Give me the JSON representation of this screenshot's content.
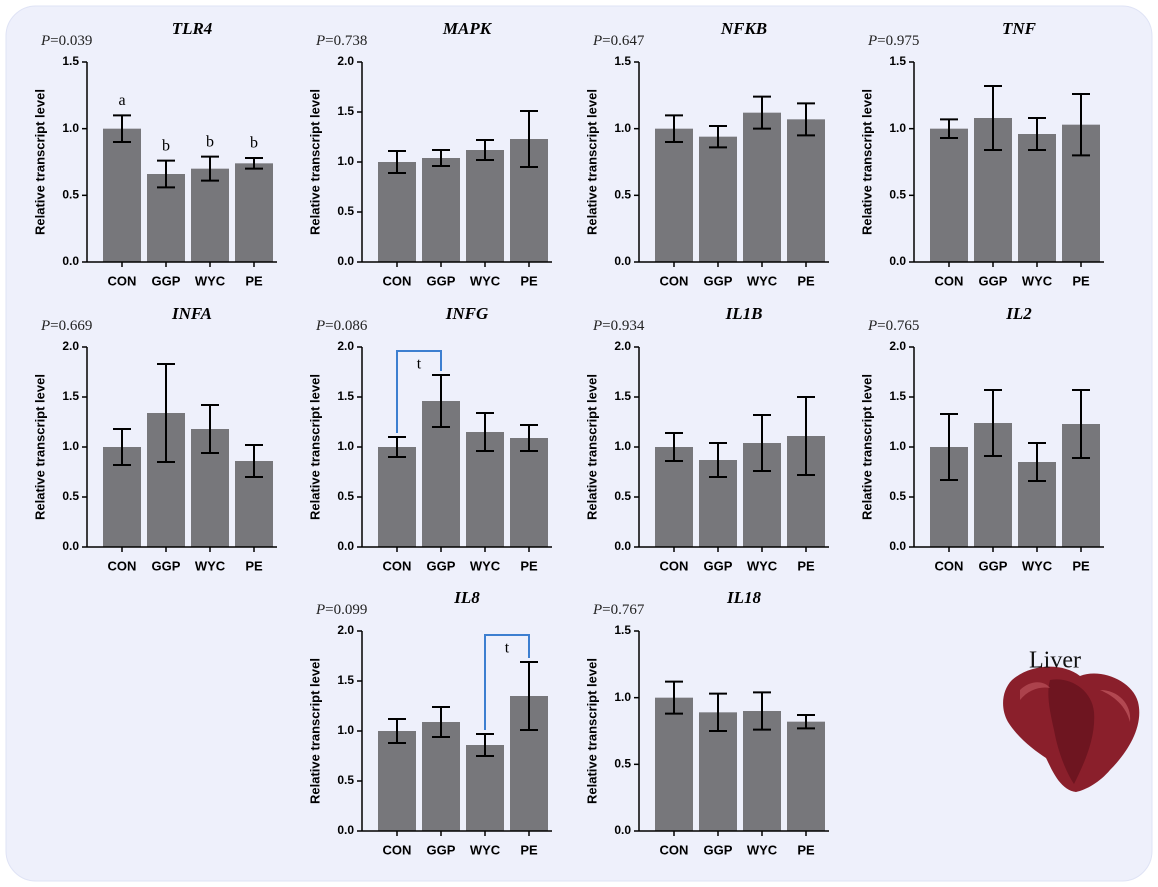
{
  "chart_data": [
    {
      "type": "bar",
      "title": "TLR4",
      "p_symbol": "P",
      "p_value": "=0.039",
      "ylabel": "Relative transcript level",
      "categories": [
        "CON",
        "GGP",
        "WYC",
        "PE"
      ],
      "values": [
        1.0,
        0.66,
        0.7,
        0.74
      ],
      "errors": [
        0.1,
        0.1,
        0.09,
        0.04
      ],
      "letters": [
        "a",
        "b",
        "b",
        "b"
      ],
      "color": "#77777b",
      "ylim": [
        0,
        1.5
      ],
      "yticks": [
        {
          "value": 0,
          "label": "0.0"
        },
        {
          "value": 0.5,
          "label": "0.5"
        },
        {
          "value": 1,
          "label": "1.0"
        },
        {
          "value": 1.5,
          "label": "1.5"
        }
      ]
    },
    {
      "type": "bar",
      "title": "MAPK",
      "p_symbol": "P",
      "p_value": "=0.738",
      "ylabel": "Relative transcript level",
      "categories": [
        "CON",
        "GGP",
        "WYC",
        "PE"
      ],
      "values": [
        1.0,
        1.04,
        1.12,
        1.23
      ],
      "errors": [
        0.11,
        0.08,
        0.1,
        0.28
      ],
      "color": "#77777b",
      "ylim": [
        0,
        2
      ],
      "yticks": [
        {
          "value": 0,
          "label": "0.0"
        },
        {
          "value": 0.5,
          "label": "0.5"
        },
        {
          "value": 1,
          "label": "1.0"
        },
        {
          "value": 1.5,
          "label": "1.5"
        },
        {
          "value": 2,
          "label": "2.0"
        }
      ]
    },
    {
      "type": "bar",
      "title": "NFKB",
      "p_symbol": "P",
      "p_value": "=0.647",
      "ylabel": "Relative transcript level",
      "categories": [
        "CON",
        "GGP",
        "WYC",
        "PE"
      ],
      "values": [
        1.0,
        0.94,
        1.12,
        1.07
      ],
      "errors": [
        0.1,
        0.08,
        0.12,
        0.12
      ],
      "color": "#77777b",
      "ylim": [
        0,
        1.5
      ],
      "yticks": [
        {
          "value": 0,
          "label": "0.0"
        },
        {
          "value": 0.5,
          "label": "0.5"
        },
        {
          "value": 1,
          "label": "1.0"
        },
        {
          "value": 1.5,
          "label": "1.5"
        }
      ]
    },
    {
      "type": "bar",
      "title": "TNF",
      "p_symbol": "P",
      "p_value": "=0.975",
      "ylabel": "Relative transcript level",
      "categories": [
        "CON",
        "GGP",
        "WYC",
        "PE"
      ],
      "values": [
        1.0,
        1.08,
        0.96,
        1.03
      ],
      "errors": [
        0.07,
        0.24,
        0.12,
        0.23
      ],
      "color": "#77777b",
      "ylim": [
        0,
        1.5
      ],
      "yticks": [
        {
          "value": 0,
          "label": "0.0"
        },
        {
          "value": 0.5,
          "label": "0.5"
        },
        {
          "value": 1,
          "label": "1.0"
        },
        {
          "value": 1.5,
          "label": "1.5"
        }
      ]
    },
    {
      "type": "bar",
      "title": "INFA",
      "p_symbol": "P",
      "p_value": "=0.669",
      "ylabel": "Relative transcript level",
      "categories": [
        "CON",
        "GGP",
        "WYC",
        "PE"
      ],
      "values": [
        1.0,
        1.34,
        1.18,
        0.86
      ],
      "errors": [
        0.18,
        0.49,
        0.24,
        0.16
      ],
      "color": "#77777b",
      "ylim": [
        0,
        2
      ],
      "yticks": [
        {
          "value": 0,
          "label": "0.0"
        },
        {
          "value": 0.5,
          "label": "0.5"
        },
        {
          "value": 1,
          "label": "1.0"
        },
        {
          "value": 1.5,
          "label": "1.5"
        },
        {
          "value": 2,
          "label": "2.0"
        }
      ]
    },
    {
      "type": "bar",
      "title": "INFG",
      "p_symbol": "P",
      "p_value": "=0.086",
      "ylabel": "Relative transcript level",
      "categories": [
        "CON",
        "GGP",
        "WYC",
        "PE"
      ],
      "values": [
        1.0,
        1.46,
        1.15,
        1.09
      ],
      "errors": [
        0.1,
        0.26,
        0.19,
        0.13
      ],
      "comparisons": [
        {
          "categories": [
            "CON",
            "GGP"
          ],
          "label": "t",
          "color": "#3d7fd0"
        }
      ],
      "color": "#77777b",
      "ylim": [
        0,
        2
      ],
      "yticks": [
        {
          "value": 0,
          "label": "0.0"
        },
        {
          "value": 0.5,
          "label": "0.5"
        },
        {
          "value": 1,
          "label": "1.0"
        },
        {
          "value": 1.5,
          "label": "1.5"
        },
        {
          "value": 2,
          "label": "2.0"
        }
      ]
    },
    {
      "type": "bar",
      "title": "IL1B",
      "p_symbol": "P",
      "p_value": "=0.934",
      "ylabel": "Relative transcript level",
      "categories": [
        "CON",
        "GGP",
        "WYC",
        "PE"
      ],
      "values": [
        1.0,
        0.87,
        1.04,
        1.11
      ],
      "errors": [
        0.14,
        0.17,
        0.28,
        0.39
      ],
      "color": "#77777b",
      "ylim": [
        0,
        2
      ],
      "yticks": [
        {
          "value": 0,
          "label": "0.0"
        },
        {
          "value": 0.5,
          "label": "0.5"
        },
        {
          "value": 1,
          "label": "1.0"
        },
        {
          "value": 1.5,
          "label": "1.5"
        },
        {
          "value": 2,
          "label": "2.0"
        }
      ]
    },
    {
      "type": "bar",
      "title": "IL2",
      "p_symbol": "P",
      "p_value": "=0.765",
      "ylabel": "Relative transcript level",
      "categories": [
        "CON",
        "GGP",
        "WYC",
        "PE"
      ],
      "values": [
        1.0,
        1.24,
        0.85,
        1.23
      ],
      "errors": [
        0.33,
        0.33,
        0.19,
        0.34
      ],
      "color": "#77777b",
      "ylim": [
        0,
        2
      ],
      "yticks": [
        {
          "value": 0,
          "label": "0.0"
        },
        {
          "value": 0.5,
          "label": "0.5"
        },
        {
          "value": 1,
          "label": "1.0"
        },
        {
          "value": 1.5,
          "label": "1.5"
        },
        {
          "value": 2,
          "label": "2.0"
        }
      ]
    },
    {
      "type": "bar",
      "title": "IL8",
      "p_symbol": "P",
      "p_value": "=0.099",
      "ylabel": "Relative transcript level",
      "categories": [
        "CON",
        "GGP",
        "WYC",
        "PE"
      ],
      "values": [
        1.0,
        1.09,
        0.86,
        1.35
      ],
      "errors": [
        0.12,
        0.15,
        0.11,
        0.34
      ],
      "comparisons": [
        {
          "categories": [
            "WYC",
            "PE"
          ],
          "label": "t",
          "color": "#3d7fd0"
        }
      ],
      "color": "#77777b",
      "ylim": [
        0,
        2
      ],
      "yticks": [
        {
          "value": 0,
          "label": "0.0"
        },
        {
          "value": 0.5,
          "label": "0.5"
        },
        {
          "value": 1,
          "label": "1.0"
        },
        {
          "value": 1.5,
          "label": "1.5"
        },
        {
          "value": 2,
          "label": "2.0"
        }
      ]
    },
    {
      "type": "bar",
      "title": "IL18",
      "p_symbol": "P",
      "p_value": "=0.767",
      "ylabel": "Relative transcript level",
      "categories": [
        "CON",
        "GGP",
        "WYC",
        "PE"
      ],
      "values": [
        1.0,
        0.89,
        0.9,
        0.82
      ],
      "errors": [
        0.12,
        0.14,
        0.14,
        0.05
      ],
      "color": "#77777b",
      "ylim": [
        0,
        1.5
      ],
      "yticks": [
        {
          "value": 0,
          "label": "0.0"
        },
        {
          "value": 0.5,
          "label": "0.5"
        },
        {
          "value": 1,
          "label": "1.0"
        },
        {
          "value": 1.5,
          "label": "1.5"
        }
      ]
    }
  ],
  "inset": {
    "label": "Liver"
  }
}
